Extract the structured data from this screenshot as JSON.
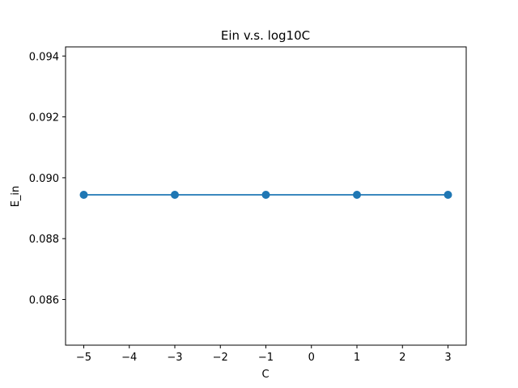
{
  "chart_data": {
    "type": "line",
    "title": "Ein v.s. log10C",
    "xlabel": "C",
    "ylabel": "E_in",
    "xlim": [
      -5.4,
      3.4
    ],
    "ylim": [
      0.0845,
      0.0943
    ],
    "xticks": [
      {
        "value": -5,
        "label": "−5"
      },
      {
        "value": -4,
        "label": "−4"
      },
      {
        "value": -3,
        "label": "−3"
      },
      {
        "value": -2,
        "label": "−2"
      },
      {
        "value": -1,
        "label": "−1"
      },
      {
        "value": 0,
        "label": "0"
      },
      {
        "value": 1,
        "label": "1"
      },
      {
        "value": 2,
        "label": "2"
      },
      {
        "value": 3,
        "label": "3"
      }
    ],
    "yticks": [
      {
        "value": 0.086,
        "label": "0.086"
      },
      {
        "value": 0.088,
        "label": "0.088"
      },
      {
        "value": 0.09,
        "label": "0.090"
      },
      {
        "value": 0.092,
        "label": "0.092"
      },
      {
        "value": 0.094,
        "label": "0.094"
      }
    ],
    "grid": false,
    "series": [
      {
        "color": "#1f77b4",
        "marker": "circle",
        "x": [
          -5,
          -3,
          -1,
          1,
          3
        ],
        "y": [
          0.08944,
          0.08944,
          0.08944,
          0.08944,
          0.08944
        ]
      }
    ]
  }
}
